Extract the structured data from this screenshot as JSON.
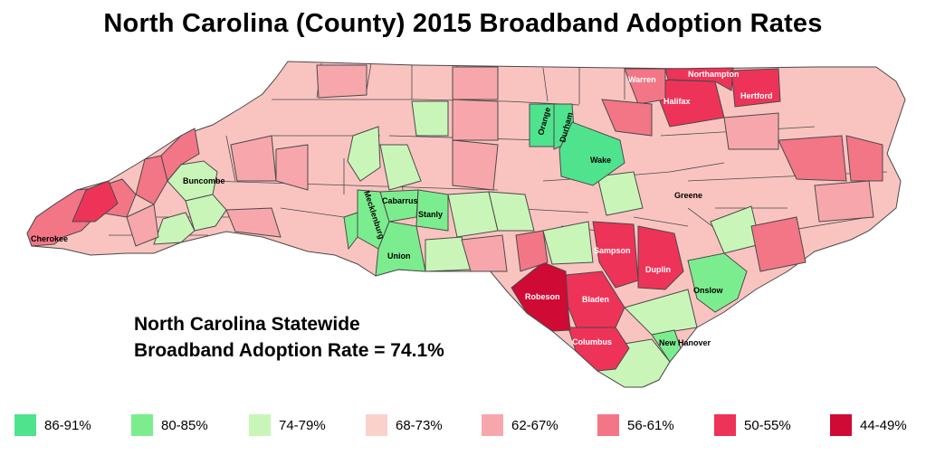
{
  "title": "North Carolina (County) 2015 Broadband Adoption Rates",
  "statewide": {
    "line1": "North Carolina Statewide",
    "line2": "Broadband Adoption Rate = 74.1%"
  },
  "legend": [
    {
      "label": "86-91%",
      "color": "#4fe38e"
    },
    {
      "label": "80-85%",
      "color": "#7ced8e"
    },
    {
      "label": "74-79%",
      "color": "#c9f6b8"
    },
    {
      "label": "68-73%",
      "color": "#fbd2cb"
    },
    {
      "label": "62-67%",
      "color": "#f7a7ab"
    },
    {
      "label": "56-61%",
      "color": "#f27686"
    },
    {
      "label": "50-55%",
      "color": "#ee3358"
    },
    {
      "label": "44-49%",
      "color": "#cf0a34"
    }
  ],
  "counties": {
    "orange": "Orange",
    "durham": "Durham",
    "wake": "Wake",
    "warren": "Warren",
    "northampton": "Northampton",
    "halifax": "Halifax",
    "hertford": "Hertford",
    "buncombe": "Buncombe",
    "cherokee": "Cherokee",
    "mecklenburg": "Mecklenburg",
    "cabarrus": "Cabarrus",
    "stanly": "Stanly",
    "union": "Union",
    "greene": "Greene",
    "sampson": "Sampson",
    "duplin": "Duplin",
    "onslow": "Onslow",
    "robeson": "Robeson",
    "bladen": "Bladen",
    "columbus": "Columbus",
    "new_hanover": "New Hanover"
  },
  "colors": {
    "border": "#4a4a4a",
    "base_fill": "#f9c4c0"
  }
}
